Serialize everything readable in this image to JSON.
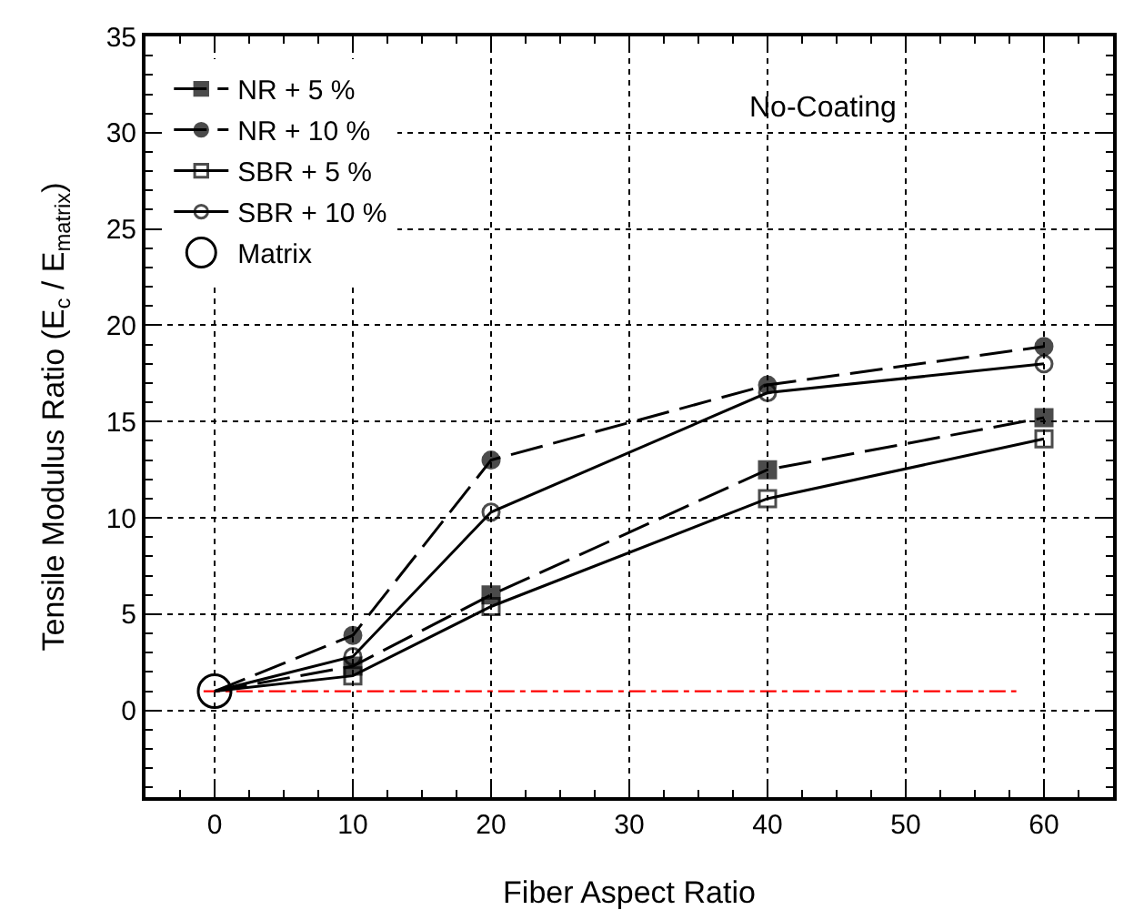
{
  "chart_data": {
    "type": "line",
    "xlabel": "Fiber Aspect Ratio",
    "ylabel": "Tensile Modulus Ratio (E$_{c}$ / E$_{matrix}$)",
    "annotations": [
      "No-Coating"
    ],
    "x": [
      0,
      10,
      20,
      40,
      60
    ],
    "series": [
      {
        "name": "NR + 5 %",
        "color": "#000000",
        "values": [
          1,
          2.3,
          6,
          12.5,
          15.2
        ],
        "marker": "square",
        "line_style": "dashed"
      },
      {
        "name": "NR + 10 %",
        "color": "#000000",
        "values": [
          1,
          3.9,
          13,
          16.9,
          18.9
        ],
        "marker": "circle",
        "line_style": "dashed"
      },
      {
        "name": "SBR + 5 %",
        "color": "#000000",
        "values": [
          1,
          1.8,
          5.4,
          11,
          14.1
        ],
        "marker": "square",
        "line_style": "solid"
      },
      {
        "name": "SBR + 10 %",
        "color": "#000000",
        "values": [
          1,
          2.8,
          10.3,
          16.5,
          18
        ],
        "marker": "circle",
        "line_style": "solid"
      },
      {
        "name": "Matrix",
        "type": "scatter",
        "color": "#000000",
        "x": [
          0
        ],
        "values": [
          1
        ],
        "marker": "circle"
      }
    ],
    "ref_lines": [
      {
        "axis": "y",
        "value": 1,
        "color": "#ff0000",
        "line_style": "dashdot"
      }
    ],
    "xlim": [
      -5,
      65
    ],
    "xticks": [
      0,
      10,
      20,
      30,
      40,
      50,
      60
    ],
    "ylim": [
      -4.5,
      35
    ],
    "yticks": [
      0,
      5,
      10,
      15,
      20,
      25,
      30,
      35
    ],
    "grid": true,
    "legend": "top left"
  }
}
